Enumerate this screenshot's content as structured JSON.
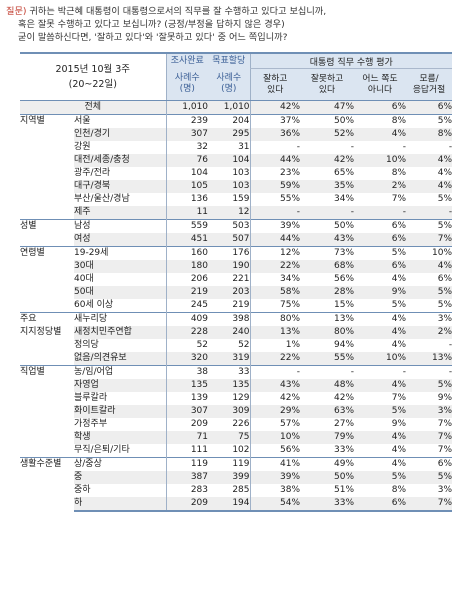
{
  "question": {
    "tag": "질문)",
    "line1": "귀하는 박근혜 대통령이 대통령으로서의 직무를 잘 수행하고 있다고 보십니까,",
    "line2": "혹은 잘못 수행하고 있다고 보십니까? (긍정/부정을 답하지 않은 경우)",
    "line3": "굳이 말씀하신다면, '잘하고 있다'와 '잘못하고 있다' 중 어느 쪽입니까?"
  },
  "table": {
    "title": "2015년 10월 3주\n(20~22일)",
    "col_survey": "조사완료",
    "col_survey_sub": "사례수\n(명)",
    "col_target": "목표할당",
    "col_target_sub": "사례수\n(명)",
    "col_eval": "대통령 직무 수행 평가",
    "eval_cols": [
      "잘하고\n있다",
      "잘못하고\n있다",
      "어느 쪽도\n아니다",
      "모름/\n응답거절"
    ],
    "total": {
      "label": "전체",
      "a": "1,010",
      "b": "1,010",
      "c": [
        "42%",
        "47%",
        "6%",
        "6%"
      ]
    },
    "groups": [
      {
        "label": "지역별",
        "rows": [
          {
            "sub": "서울",
            "a": "239",
            "b": "204",
            "c": [
              "37%",
              "50%",
              "8%",
              "5%"
            ]
          },
          {
            "sub": "인천/경기",
            "a": "307",
            "b": "295",
            "c": [
              "36%",
              "52%",
              "4%",
              "8%"
            ]
          },
          {
            "sub": "강원",
            "a": "32",
            "b": "31",
            "c": [
              "-",
              "-",
              "-",
              "-"
            ]
          },
          {
            "sub": "대전/세종/충청",
            "a": "76",
            "b": "104",
            "c": [
              "44%",
              "42%",
              "10%",
              "4%"
            ]
          },
          {
            "sub": "광주/전라",
            "a": "104",
            "b": "103",
            "c": [
              "23%",
              "65%",
              "8%",
              "4%"
            ]
          },
          {
            "sub": "대구/경북",
            "a": "105",
            "b": "103",
            "c": [
              "59%",
              "35%",
              "2%",
              "4%"
            ]
          },
          {
            "sub": "부산/울산/경남",
            "a": "136",
            "b": "159",
            "c": [
              "55%",
              "34%",
              "7%",
              "5%"
            ]
          },
          {
            "sub": "제주",
            "a": "11",
            "b": "12",
            "c": [
              "-",
              "-",
              "-",
              "-"
            ]
          }
        ]
      },
      {
        "label": "성별",
        "rows": [
          {
            "sub": "남성",
            "a": "559",
            "b": "503",
            "c": [
              "39%",
              "50%",
              "6%",
              "5%"
            ]
          },
          {
            "sub": "여성",
            "a": "451",
            "b": "507",
            "c": [
              "44%",
              "43%",
              "6%",
              "7%"
            ]
          }
        ]
      },
      {
        "label": "연령별",
        "rows": [
          {
            "sub": "19-29세",
            "a": "160",
            "b": "176",
            "c": [
              "12%",
              "73%",
              "5%",
              "10%"
            ]
          },
          {
            "sub": "30대",
            "a": "180",
            "b": "190",
            "c": [
              "22%",
              "68%",
              "6%",
              "4%"
            ]
          },
          {
            "sub": "40대",
            "a": "206",
            "b": "221",
            "c": [
              "34%",
              "56%",
              "4%",
              "6%"
            ]
          },
          {
            "sub": "50대",
            "a": "219",
            "b": "203",
            "c": [
              "58%",
              "28%",
              "9%",
              "5%"
            ]
          },
          {
            "sub": "60세 이상",
            "a": "245",
            "b": "219",
            "c": [
              "75%",
              "15%",
              "5%",
              "5%"
            ]
          }
        ]
      },
      {
        "label": "주요\n지지정당별",
        "rows": [
          {
            "sub": "새누리당",
            "a": "409",
            "b": "398",
            "c": [
              "80%",
              "13%",
              "4%",
              "3%"
            ]
          },
          {
            "sub": "새정치민주연합",
            "a": "228",
            "b": "240",
            "c": [
              "13%",
              "80%",
              "4%",
              "2%"
            ]
          },
          {
            "sub": "정의당",
            "a": "52",
            "b": "52",
            "c": [
              "1%",
              "94%",
              "4%",
              "-"
            ]
          },
          {
            "sub": "없음/의견유보",
            "a": "320",
            "b": "319",
            "c": [
              "22%",
              "55%",
              "10%",
              "13%"
            ]
          }
        ]
      },
      {
        "label": "직업별",
        "rows": [
          {
            "sub": "농/임/어업",
            "a": "38",
            "b": "33",
            "c": [
              "-",
              "-",
              "-",
              "-"
            ]
          },
          {
            "sub": "자영업",
            "a": "135",
            "b": "135",
            "c": [
              "43%",
              "48%",
              "4%",
              "5%"
            ]
          },
          {
            "sub": "블루칼라",
            "a": "139",
            "b": "129",
            "c": [
              "42%",
              "42%",
              "7%",
              "9%"
            ]
          },
          {
            "sub": "화이트칼라",
            "a": "307",
            "b": "309",
            "c": [
              "29%",
              "63%",
              "5%",
              "3%"
            ]
          },
          {
            "sub": "가정주부",
            "a": "209",
            "b": "226",
            "c": [
              "57%",
              "27%",
              "9%",
              "7%"
            ]
          },
          {
            "sub": "학생",
            "a": "71",
            "b": "75",
            "c": [
              "10%",
              "79%",
              "4%",
              "7%"
            ]
          },
          {
            "sub": "무직/은퇴/기타",
            "a": "111",
            "b": "102",
            "c": [
              "56%",
              "33%",
              "4%",
              "7%"
            ]
          }
        ]
      },
      {
        "label": "생활수준별",
        "rows": [
          {
            "sub": "상/중상",
            "a": "119",
            "b": "119",
            "c": [
              "41%",
              "49%",
              "4%",
              "6%"
            ]
          },
          {
            "sub": "중",
            "a": "387",
            "b": "399",
            "c": [
              "39%",
              "50%",
              "5%",
              "5%"
            ]
          },
          {
            "sub": "중하",
            "a": "283",
            "b": "285",
            "c": [
              "38%",
              "51%",
              "8%",
              "3%"
            ]
          },
          {
            "sub": "하",
            "a": "209",
            "b": "194",
            "c": [
              "54%",
              "33%",
              "6%",
              "7%"
            ]
          }
        ]
      }
    ]
  }
}
